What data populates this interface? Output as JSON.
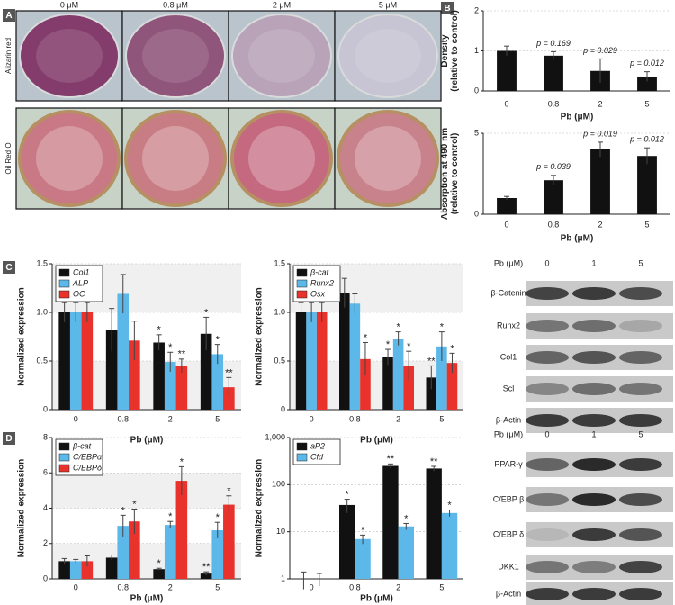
{
  "panels": [
    "A",
    "B",
    "C",
    "D"
  ],
  "photos": {
    "concentrations": [
      "0 μM",
      "0.8 μM",
      "2 μM",
      "5 μM"
    ],
    "rows": [
      "Alizarin red",
      "Oil Red O"
    ]
  },
  "blots_c": {
    "header": "Pb (μM)",
    "doses": [
      "0",
      "1",
      "5"
    ],
    "rows": [
      "β-Catenin",
      "Runx2",
      "Col1",
      "Scl",
      "β-Actin"
    ]
  },
  "blots_d": {
    "header": "Pb (μM)",
    "doses": [
      "0",
      "1",
      "5"
    ],
    "rows": [
      "PPAR-γ",
      "C/EBP β",
      "C/EBP δ",
      "DKK1",
      "β-Actin"
    ]
  },
  "chart_data": [
    {
      "type": "bar",
      "ylabel": [
        "Density",
        "(relative to control)"
      ],
      "xlabel": "Pb (μM)",
      "categories": [
        "0",
        "0.8",
        "2",
        "5"
      ],
      "ylim": [
        0,
        2
      ],
      "yticks": [
        0,
        1,
        2
      ],
      "grid": true,
      "series": [
        {
          "color": "#111111",
          "values": [
            1.0,
            0.88,
            0.5,
            0.36
          ],
          "errors": [
            0.12,
            0.1,
            0.3,
            0.12
          ],
          "annotations": [
            null,
            "p = 0.169",
            "p = 0.029",
            "p = 0.012"
          ]
        }
      ]
    },
    {
      "type": "bar",
      "ylabel": [
        "Absorption at 490 nm",
        "(relative to control)"
      ],
      "xlabel": "Pb (μM)",
      "categories": [
        "0",
        "0.8",
        "2",
        "5"
      ],
      "ylim": [
        0,
        5
      ],
      "yticks": [
        0,
        5
      ],
      "grid": true,
      "series": [
        {
          "color": "#111111",
          "values": [
            1.0,
            2.1,
            4.0,
            3.6
          ],
          "errors": [
            0.1,
            0.3,
            0.45,
            0.5
          ],
          "annotations": [
            null,
            "p = 0.039",
            "p = 0.019",
            "p = 0.012"
          ]
        }
      ]
    },
    {
      "type": "bar",
      "ylabel": "Normalized expression",
      "xlabel": "Pb (μM)",
      "legend": "upper left",
      "categories": [
        "0",
        "0.8",
        "2",
        "5"
      ],
      "ylim": [
        0,
        1.5
      ],
      "yticks": [
        0,
        0.5,
        {
          "value": 1,
          "label": "1.0"
        },
        1.5
      ],
      "grid": true,
      "series": [
        {
          "name": "Col1",
          "color": "#111111",
          "values": [
            1.0,
            0.82,
            0.69,
            0.78
          ],
          "errors": [
            0.1,
            0.22,
            0.08,
            0.17
          ],
          "annotations": [
            null,
            null,
            "*",
            "*"
          ]
        },
        {
          "name": "ALP",
          "color": "#5bb8e8",
          "values": [
            1.0,
            1.19,
            0.49,
            0.57
          ],
          "errors": [
            0.1,
            0.2,
            0.1,
            0.1
          ],
          "annotations": [
            null,
            null,
            "*",
            "*"
          ]
        },
        {
          "name": "OC",
          "color": "#e8322b",
          "values": [
            1.0,
            0.71,
            0.45,
            0.23
          ],
          "errors": [
            0.1,
            0.2,
            0.07,
            0.1
          ],
          "annotations": [
            null,
            null,
            "**",
            "**"
          ]
        }
      ]
    },
    {
      "type": "bar",
      "ylabel": "Normalized expression",
      "xlabel": "Pb (μM)",
      "legend": "upper left",
      "categories": [
        "0",
        "0.8",
        "2",
        "5"
      ],
      "ylim": [
        0,
        1.5
      ],
      "yticks": [
        0,
        0.5,
        {
          "value": 1,
          "label": "1.0"
        },
        1.5
      ],
      "grid": true,
      "series": [
        {
          "name": "β-cat",
          "color": "#111111",
          "values": [
            1.0,
            1.2,
            0.54,
            0.33
          ],
          "errors": [
            0.1,
            0.15,
            0.08,
            0.12
          ],
          "annotations": [
            null,
            null,
            "*",
            "**"
          ]
        },
        {
          "name": "Runx2",
          "color": "#5bb8e8",
          "values": [
            1.0,
            1.09,
            0.73,
            0.65
          ],
          "errors": [
            0.1,
            0.1,
            0.07,
            0.15
          ],
          "annotations": [
            null,
            null,
            "*",
            "*"
          ]
        },
        {
          "name": "Osx",
          "color": "#e8322b",
          "values": [
            1.0,
            0.52,
            0.45,
            0.48
          ],
          "errors": [
            0.1,
            0.17,
            0.15,
            0.1
          ],
          "annotations": [
            null,
            "*",
            "*",
            "*"
          ]
        }
      ]
    },
    {
      "type": "bar",
      "ylabel": "Normalized expression",
      "xlabel": "Pb (μM)",
      "legend": "upper left",
      "categories": [
        "0",
        "0.8",
        "2",
        "5"
      ],
      "ylim": [
        0,
        8
      ],
      "yticks": [
        0,
        2,
        4,
        6,
        8
      ],
      "grid": true,
      "series": [
        {
          "name": "β-cat",
          "color": "#111111",
          "values": [
            1.0,
            1.2,
            0.55,
            0.3
          ],
          "errors": [
            0.15,
            0.15,
            0.05,
            0.1
          ],
          "annotations": [
            null,
            null,
            "*",
            "**"
          ]
        },
        {
          "name": "C/EBPα",
          "color": "#5bb8e8",
          "values": [
            1.0,
            3.0,
            3.05,
            2.75
          ],
          "errors": [
            0.1,
            0.6,
            0.2,
            0.45
          ],
          "annotations": [
            null,
            "*",
            "*",
            "*"
          ]
        },
        {
          "name": "C/EBPδ",
          "color": "#e8322b",
          "values": [
            1.0,
            3.25,
            5.55,
            4.2
          ],
          "errors": [
            0.3,
            0.7,
            0.8,
            0.5
          ],
          "annotations": [
            null,
            "*",
            "*",
            "*"
          ]
        }
      ]
    },
    {
      "type": "bar",
      "ylabel": "Normalized expression",
      "xlabel": "Pb (μM)",
      "legend": "upper left",
      "log_scale": true,
      "categories": [
        "0",
        "0.8",
        "2",
        "5"
      ],
      "ylim": [
        1,
        1000
      ],
      "yticks": [
        1,
        10,
        100,
        {
          "value": 1000,
          "label": "1,000"
        }
      ],
      "grid": true,
      "series": [
        {
          "name": "aP2",
          "color": "#111111",
          "values": [
            1.0,
            37,
            250,
            220
          ],
          "errors": [
            0.4,
            12,
            25,
            25
          ],
          "annotations": [
            null,
            "*",
            "**",
            "**"
          ]
        },
        {
          "name": "Cfd",
          "color": "#5bb8e8",
          "values": [
            1.0,
            7,
            13,
            25
          ],
          "errors": [
            0.3,
            1.5,
            2,
            4
          ],
          "annotations": [
            null,
            "*",
            "*",
            "*"
          ]
        }
      ]
    }
  ]
}
